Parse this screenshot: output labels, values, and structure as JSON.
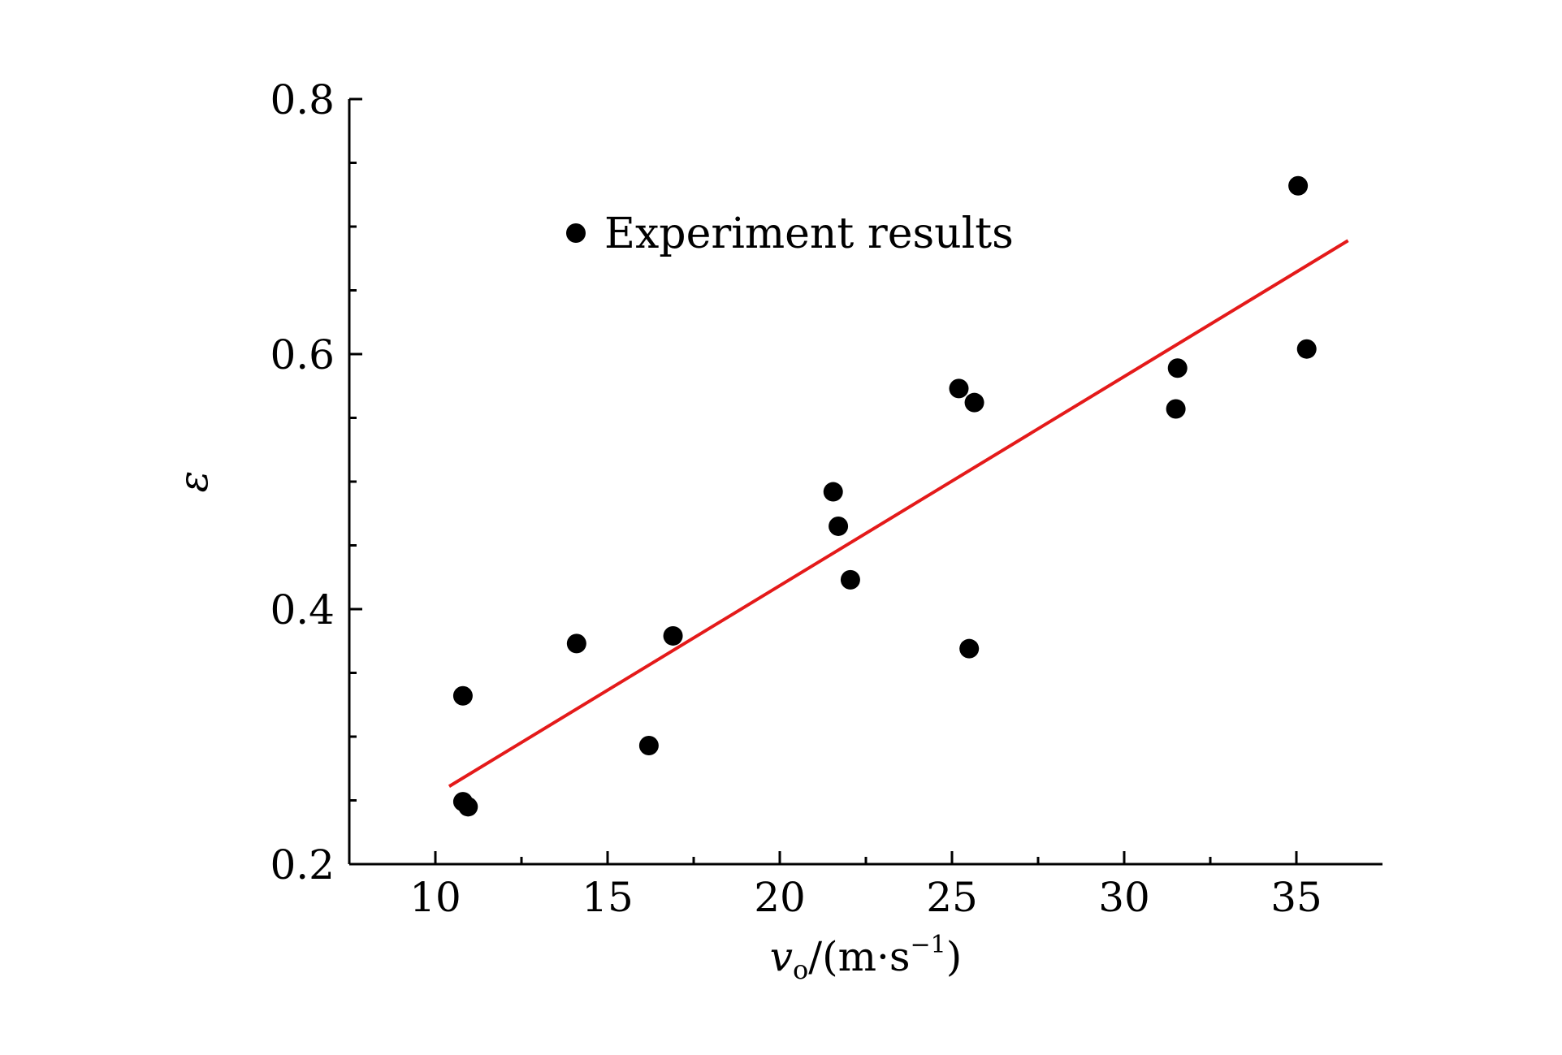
{
  "chart_data": {
    "type": "scatter",
    "xlabel": {
      "var": "v",
      "sub": "o",
      "unit": "/(m·s",
      "sup": "−1",
      "close": ")"
    },
    "ylabel": "ε",
    "xlim": [
      7.5,
      37.5
    ],
    "ylim": [
      0.2,
      0.8
    ],
    "x_ticks": [
      10,
      15,
      20,
      25,
      30,
      35
    ],
    "x_tick_labels": [
      "10",
      "15",
      "20",
      "25",
      "30",
      "35"
    ],
    "x_minor_ticks": [
      12.5,
      17.5,
      22.5,
      27.5,
      32.5
    ],
    "y_ticks": [
      0.2,
      0.4,
      0.6,
      0.8
    ],
    "y_tick_labels": [
      "0.2",
      "0.4",
      "0.6",
      "0.8"
    ],
    "y_minor_ticks": [
      0.25,
      0.3,
      0.35,
      0.45,
      0.5,
      0.55,
      0.65,
      0.7,
      0.75
    ],
    "legend_position": "top-left",
    "series": [
      {
        "name": "Experiment results",
        "marker": "circle",
        "color": "#000000",
        "points": [
          {
            "x": 10.8,
            "y": 0.332
          },
          {
            "x": 10.8,
            "y": 0.249
          },
          {
            "x": 10.95,
            "y": 0.245
          },
          {
            "x": 14.1,
            "y": 0.373
          },
          {
            "x": 16.2,
            "y": 0.293
          },
          {
            "x": 16.9,
            "y": 0.379
          },
          {
            "x": 21.55,
            "y": 0.492
          },
          {
            "x": 21.7,
            "y": 0.465
          },
          {
            "x": 22.05,
            "y": 0.423
          },
          {
            "x": 25.2,
            "y": 0.573
          },
          {
            "x": 25.65,
            "y": 0.562
          },
          {
            "x": 25.5,
            "y": 0.369
          },
          {
            "x": 31.55,
            "y": 0.589
          },
          {
            "x": 31.5,
            "y": 0.557
          },
          {
            "x": 35.05,
            "y": 0.732
          },
          {
            "x": 35.3,
            "y": 0.604
          }
        ]
      }
    ],
    "fit_line": {
      "color": "#e41a1a",
      "x": [
        10.4,
        36.5
      ],
      "y": [
        0.261,
        0.689
      ]
    }
  }
}
